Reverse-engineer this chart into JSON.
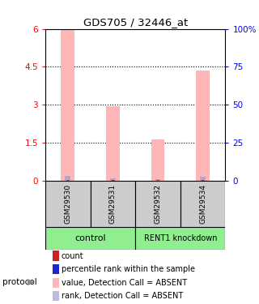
{
  "title": "GDS705 / 32446_at",
  "samples": [
    "GSM29530",
    "GSM29531",
    "GSM29532",
    "GSM29534"
  ],
  "bar_values_pink": [
    5.95,
    2.93,
    1.62,
    4.35
  ],
  "bar_values_blue": [
    0.18,
    0.08,
    0.055,
    0.15
  ],
  "bar_values_red": [
    0.04,
    0.035,
    0.035,
    0.04
  ],
  "ylim_left": [
    0,
    6
  ],
  "ylim_right": [
    0,
    100
  ],
  "yticks_left": [
    0,
    1.5,
    3.0,
    4.5,
    6
  ],
  "ytick_labels_left": [
    "0",
    "1.5",
    "3",
    "4.5",
    "6"
  ],
  "yticks_right": [
    0,
    25,
    50,
    75,
    100
  ],
  "ytick_labels_right": [
    "0",
    "25",
    "50",
    "75",
    "100%"
  ],
  "bar_color_pink": "#FFB6B6",
  "bar_color_blue": "#AAAACC",
  "bar_color_red": "#CC2222",
  "sample_box_color": "#CCCCCC",
  "dotted_gridlines": [
    1.5,
    3.0,
    4.5
  ],
  "group1_label": "control",
  "group2_label": "RENT1 knockdown",
  "group_color": "#90EE90",
  "legend_items": [
    {
      "color": "#CC2222",
      "label": "count"
    },
    {
      "color": "#2222CC",
      "label": "percentile rank within the sample"
    },
    {
      "color": "#FFB6B6",
      "label": "value, Detection Call = ABSENT"
    },
    {
      "color": "#BBBBDD",
      "label": "rank, Detection Call = ABSENT"
    }
  ]
}
